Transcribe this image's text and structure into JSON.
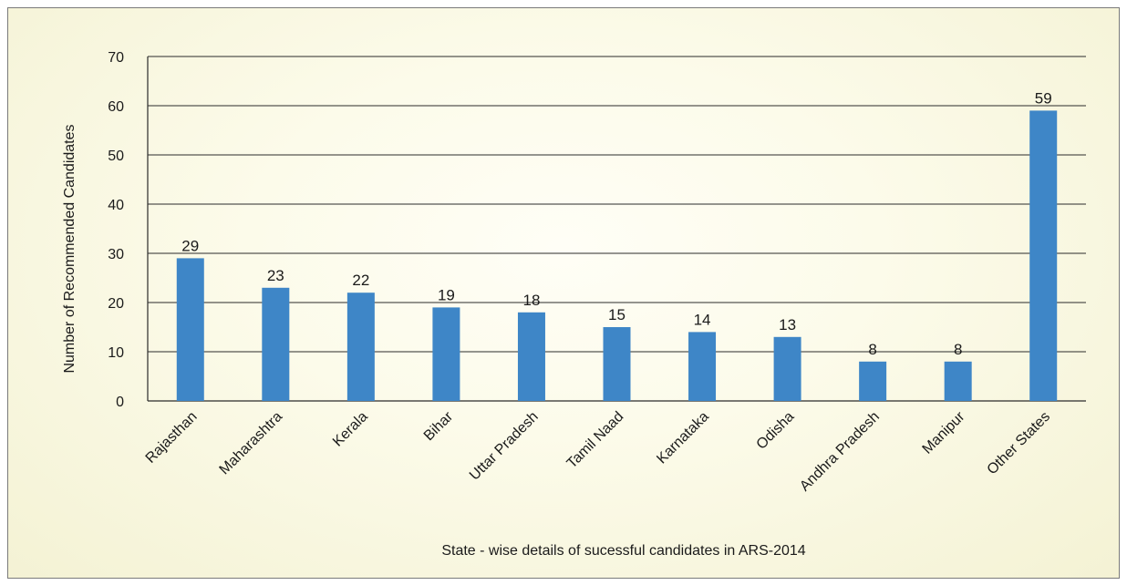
{
  "chart_data": {
    "type": "bar",
    "categories": [
      "Rajasthan",
      "Maharashtra",
      "Kerala",
      "Bihar",
      "Uttar Pradesh",
      "Tamil Naad",
      "Karnataka",
      "Odisha",
      "Andhra Pradesh",
      "Manipur",
      "Other States"
    ],
    "values": [
      29,
      23,
      22,
      19,
      18,
      15,
      14,
      13,
      8,
      8,
      59
    ],
    "data_labels": [
      "29",
      "23",
      "22",
      "19",
      "18",
      "15",
      "14",
      "13",
      "8",
      "8",
      "59"
    ],
    "title": "",
    "xlabel": "State - wise details of sucessful candidates in ARS-2014",
    "ylabel": "Number of Recommended Candidates",
    "ylim": [
      0,
      70
    ],
    "yticks": [
      0,
      10,
      20,
      30,
      40,
      50,
      60,
      70
    ],
    "ytick_labels": [
      "0",
      "10",
      "20",
      "30",
      "40",
      "50",
      "60",
      "70"
    ],
    "grid": true,
    "legend": "none",
    "colors": {
      "bar": "#3e86c7",
      "gridline": "#2b2b2b",
      "background": "#fcfbea"
    }
  }
}
